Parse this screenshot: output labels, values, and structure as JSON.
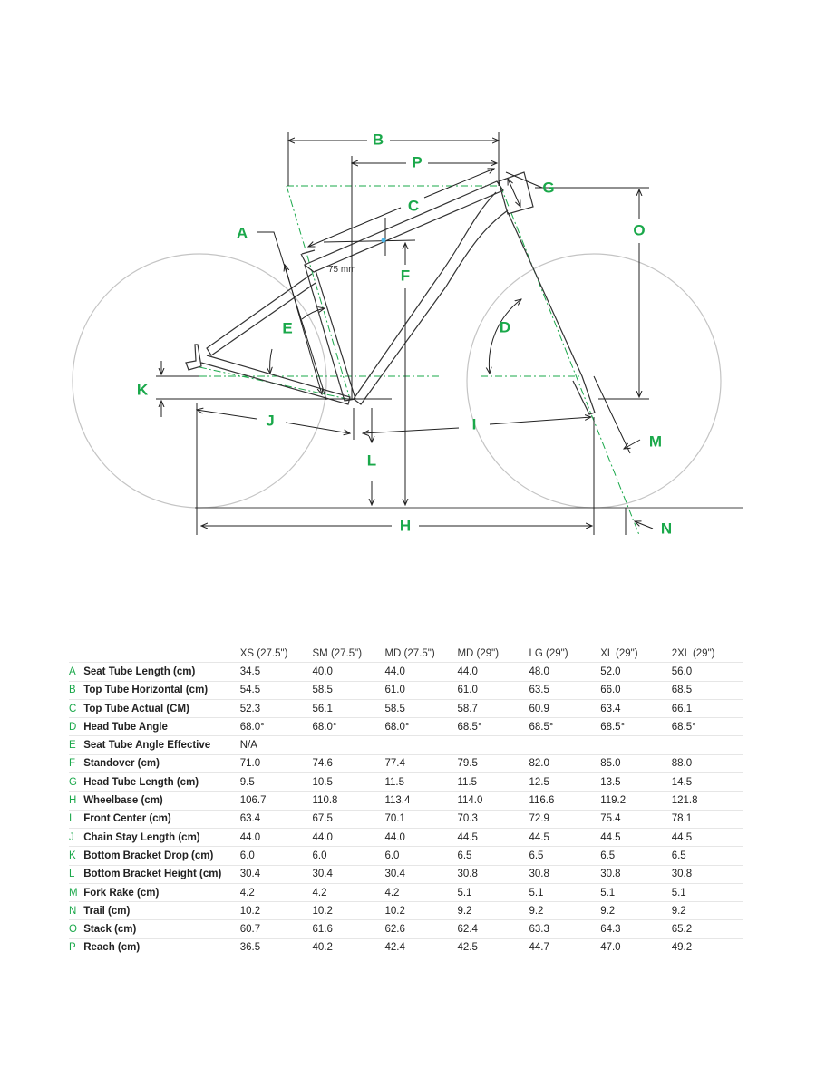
{
  "colors": {
    "accent": "#1aa84a",
    "frame": "#333333",
    "wheel": "#bdbdbd"
  },
  "diagram": {
    "labels": {
      "A": "A",
      "B": "B",
      "C": "C",
      "D": "D",
      "E": "E",
      "F": "F",
      "G": "G",
      "H": "H",
      "I": "I",
      "J": "J",
      "K": "K",
      "L": "L",
      "M": "M",
      "N": "N",
      "O": "O",
      "P": "P"
    },
    "offset_note": "75 mm"
  },
  "table": {
    "headers": [
      "XS (27.5\")",
      "SM (27.5\")",
      "MD (27.5\")",
      "MD (29\")",
      "LG (29\")",
      "XL (29\")",
      "2XL (29\")"
    ],
    "rows": [
      {
        "letter": "A",
        "name": "Seat Tube Length (cm)",
        "values": [
          "34.5",
          "40.0",
          "44.0",
          "44.0",
          "48.0",
          "52.0",
          "56.0"
        ]
      },
      {
        "letter": "B",
        "name": "Top Tube Horizontal (cm)",
        "values": [
          "54.5",
          "58.5",
          "61.0",
          "61.0",
          "63.5",
          "66.0",
          "68.5"
        ]
      },
      {
        "letter": "C",
        "name": "Top Tube Actual (CM)",
        "values": [
          "52.3",
          "56.1",
          "58.5",
          "58.7",
          "60.9",
          "63.4",
          "66.1"
        ]
      },
      {
        "letter": "D",
        "name": "Head Tube Angle",
        "values": [
          "68.0°",
          "68.0°",
          "68.0°",
          "68.5°",
          "68.5°",
          "68.5°",
          "68.5°"
        ]
      },
      {
        "letter": "E",
        "name": "Seat Tube Angle Effective",
        "values": [
          "N/A",
          "",
          "",
          "",
          "",
          "",
          ""
        ]
      },
      {
        "letter": "F",
        "name": "Standover (cm)",
        "values": [
          "71.0",
          "74.6",
          "77.4",
          "79.5",
          "82.0",
          "85.0",
          "88.0"
        ]
      },
      {
        "letter": "G",
        "name": "Head Tube Length (cm)",
        "values": [
          "9.5",
          "10.5",
          "11.5",
          "11.5",
          "12.5",
          "13.5",
          "14.5"
        ]
      },
      {
        "letter": "H",
        "name": "Wheelbase (cm)",
        "values": [
          "106.7",
          "110.8",
          "113.4",
          "114.0",
          "116.6",
          "119.2",
          "121.8"
        ]
      },
      {
        "letter": "I",
        "name": "Front Center (cm)",
        "values": [
          "63.4",
          "67.5",
          "70.1",
          "70.3",
          "72.9",
          "75.4",
          "78.1"
        ]
      },
      {
        "letter": "J",
        "name": "Chain Stay Length (cm)",
        "values": [
          "44.0",
          "44.0",
          "44.0",
          "44.5",
          "44.5",
          "44.5",
          "44.5"
        ]
      },
      {
        "letter": "K",
        "name": "Bottom Bracket Drop (cm)",
        "values": [
          "6.0",
          "6.0",
          "6.0",
          "6.5",
          "6.5",
          "6.5",
          "6.5"
        ]
      },
      {
        "letter": "L",
        "name": "Bottom Bracket Height (cm)",
        "values": [
          "30.4",
          "30.4",
          "30.4",
          "30.8",
          "30.8",
          "30.8",
          "30.8"
        ]
      },
      {
        "letter": "M",
        "name": "Fork Rake (cm)",
        "values": [
          "4.2",
          "4.2",
          "4.2",
          "5.1",
          "5.1",
          "5.1",
          "5.1"
        ]
      },
      {
        "letter": "N",
        "name": "Trail (cm)",
        "values": [
          "10.2",
          "10.2",
          "10.2",
          "9.2",
          "9.2",
          "9.2",
          "9.2"
        ]
      },
      {
        "letter": "O",
        "name": "Stack (cm)",
        "values": [
          "60.7",
          "61.6",
          "62.6",
          "62.4",
          "63.3",
          "64.3",
          "65.2"
        ]
      },
      {
        "letter": "P",
        "name": "Reach (cm)",
        "values": [
          "36.5",
          "40.2",
          "42.4",
          "42.5",
          "44.7",
          "47.0",
          "49.2"
        ]
      }
    ]
  }
}
